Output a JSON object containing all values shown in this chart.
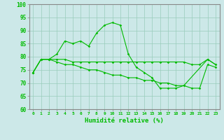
{
  "x": [
    0,
    1,
    2,
    3,
    4,
    5,
    6,
    7,
    8,
    9,
    10,
    11,
    12,
    13,
    14,
    15,
    16,
    17,
    18,
    19,
    20,
    21,
    22,
    23
  ],
  "line1": [
    74,
    79,
    79,
    81,
    86,
    85,
    86,
    84,
    89,
    92,
    93,
    92,
    81,
    76,
    74,
    72,
    68,
    68,
    68,
    69,
    null,
    null,
    79,
    77
  ],
  "line2": [
    74,
    79,
    79,
    79,
    79,
    78,
    78,
    78,
    78,
    78,
    78,
    78,
    78,
    78,
    78,
    78,
    78,
    78,
    78,
    78,
    77,
    77,
    79,
    77
  ],
  "line3": [
    74,
    79,
    79,
    78,
    77,
    77,
    76,
    75,
    75,
    74,
    73,
    73,
    72,
    72,
    71,
    71,
    70,
    70,
    69,
    69,
    68,
    68,
    77,
    76
  ],
  "xlabel": "Humidité relative (%)",
  "ylim": [
    60,
    100
  ],
  "xlim": [
    -0.5,
    23.5
  ],
  "yticks": [
    60,
    65,
    70,
    75,
    80,
    85,
    90,
    95,
    100
  ],
  "xticks": [
    0,
    1,
    2,
    3,
    4,
    5,
    6,
    7,
    8,
    9,
    10,
    11,
    12,
    13,
    14,
    15,
    16,
    17,
    18,
    19,
    20,
    21,
    22,
    23
  ],
  "line_color": "#00bb00",
  "bg_color": "#cce8e8",
  "grid_color": "#99ccbb",
  "spine_color": "#888888"
}
